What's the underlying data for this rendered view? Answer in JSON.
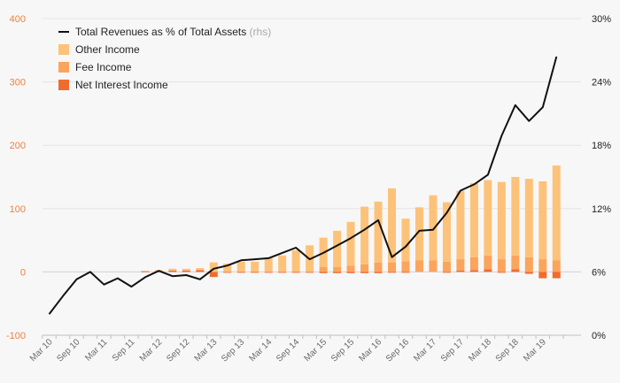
{
  "chart_data": {
    "type": "bar",
    "stacked": true,
    "x": [
      "Mar 10",
      "Jun 10",
      "Sep 10",
      "Dec 10",
      "Mar 11",
      "Jun 11",
      "Sep 11",
      "Dec 11",
      "Mar 12",
      "Jun 12",
      "Sep 12",
      "Dec 12",
      "Mar 13",
      "Jun 13",
      "Sep 13",
      "Dec 13",
      "Mar 14",
      "Jun 14",
      "Sep 14",
      "Dec 14",
      "Mar 15",
      "Jun 15",
      "Sep 15",
      "Dec 15",
      "Mar 16",
      "Jun 16",
      "Sep 16",
      "Dec 16",
      "Mar 17",
      "Jun 17",
      "Sep 17",
      "Dec 17",
      "Mar 18",
      "Jun 18",
      "Sep 18",
      "Dec 18",
      "Mar 19",
      "Jun 19"
    ],
    "x_tick_labels": [
      "Mar 10",
      "Sep 10",
      "Mar 11",
      "Sep 11",
      "Mar 12",
      "Sep 12",
      "Mar 13",
      "Sep 13",
      "Mar 14",
      "Sep 14",
      "Mar 15",
      "Sep 15",
      "Mar 16",
      "Sep 16",
      "Mar 17",
      "Sep 17",
      "Mar 18",
      "Sep 18",
      "Mar 19"
    ],
    "y_left": {
      "ticks": [
        "400",
        "300",
        "200",
        "100",
        "0",
        "-100"
      ],
      "range": [
        -100,
        400
      ]
    },
    "y_right": {
      "ticks": [
        "30%",
        "24%",
        "18%",
        "12%",
        "6%",
        "0%"
      ],
      "range": [
        0,
        30
      ]
    },
    "grid": true,
    "legend_position": "top-left",
    "legend": [
      {
        "name": "Total Revenues as % of Total Assets",
        "note": "(rhs)",
        "kind": "line",
        "color": "#111111"
      },
      {
        "name": "Other Income",
        "kind": "bar",
        "color": "#fdc27a"
      },
      {
        "name": "Fee Income",
        "kind": "bar",
        "color": "#fba45c"
      },
      {
        "name": "Net Interest Income",
        "kind": "bar",
        "color": "#f26b2e"
      }
    ],
    "series": [
      {
        "name": "Net Interest Income",
        "axis": "left",
        "color": "#f26b2e",
        "values": [
          0,
          0,
          0,
          0,
          0,
          0,
          0,
          1,
          1,
          2,
          2,
          3,
          -8,
          -1,
          -1,
          -1,
          -1,
          -1,
          -1,
          -1,
          -2,
          -2,
          -2,
          -2,
          -2,
          -1,
          -1,
          0,
          0,
          -1,
          2,
          3,
          4,
          -1,
          4,
          -3,
          -10,
          -10
        ]
      },
      {
        "name": "Fee Income",
        "axis": "left",
        "color": "#fba45c",
        "values": [
          0,
          0,
          0,
          0,
          0,
          0,
          0,
          0,
          0,
          0,
          0,
          0,
          0,
          0,
          0,
          0,
          0,
          0,
          0,
          0,
          8,
          8,
          10,
          12,
          15,
          15,
          17,
          18,
          18,
          16,
          18,
          20,
          22,
          20,
          22,
          23,
          20,
          18
        ]
      },
      {
        "name": "Other Income",
        "axis": "left",
        "color": "#fdc27a",
        "values": [
          0,
          0,
          0,
          0,
          0,
          0,
          0,
          1,
          2,
          3,
          3,
          3,
          15,
          13,
          16,
          16,
          22,
          26,
          34,
          42,
          46,
          57,
          69,
          91,
          96,
          117,
          67,
          84,
          103,
          94,
          108,
          117,
          119,
          122,
          124,
          124,
          123,
          150
        ]
      },
      {
        "name": "Total Revenues as % of Total Assets",
        "axis": "right",
        "type": "line",
        "color": "#111111",
        "values": [
          2.0,
          3.7,
          5.3,
          6.0,
          4.8,
          5.4,
          4.6,
          5.5,
          6.1,
          5.6,
          5.7,
          5.3,
          6.3,
          6.6,
          7.1,
          7.2,
          7.3,
          7.8,
          8.3,
          7.2,
          7.8,
          8.5,
          9.2,
          10.0,
          10.9,
          7.4,
          8.4,
          9.9,
          10.0,
          11.6,
          13.7,
          14.3,
          15.2,
          18.9,
          21.8,
          20.3,
          21.6,
          26.4
        ]
      }
    ]
  }
}
